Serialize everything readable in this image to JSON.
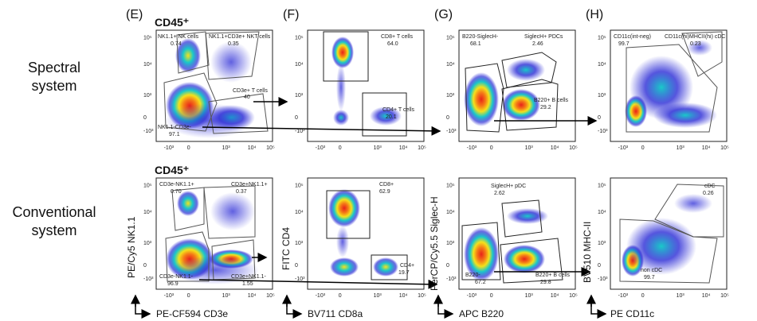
{
  "row_labels": {
    "spectral": [
      "Spectral",
      "system"
    ],
    "conventional": [
      "Conventional",
      "system"
    ]
  },
  "cd45_label": "CD45⁺",
  "panels": [
    {
      "letter": "(E)"
    },
    {
      "letter": "(F)"
    },
    {
      "letter": "(G)"
    },
    {
      "letter": "(H)"
    }
  ],
  "axes": {
    "x": [
      "PE-CF594 CD3e",
      "BV711 CD8a",
      "APC B220",
      "PE CD11c"
    ],
    "y": [
      "PE/Cy5 NK1.1",
      "FITC CD4",
      "PerCP/Cy5.5 Siglec-H",
      "BV510 MHC-II"
    ]
  },
  "gates": {
    "spectral": {
      "E": [
        {
          "name": "NK1.1+ NK cells",
          "value": "0.74"
        },
        {
          "name": "NK1.1+CD3e+ NKT cells",
          "value": "0.35"
        },
        {
          "name": "CD3e+ T cells",
          "value": "40"
        },
        {
          "name": "NK1.1-CD3e-",
          "value": "97.1"
        }
      ],
      "F": [
        {
          "name": "CD8+ T cells",
          "value": "64.0"
        },
        {
          "name": "CD4+ T cells",
          "value": "20.1"
        }
      ],
      "G": [
        {
          "name": "B220-SiglecH-",
          "value": "68.1"
        },
        {
          "name": "SiglecH+ PDCs",
          "value": "2.46"
        },
        {
          "name": "B220+ B cells",
          "value": "29.2"
        }
      ],
      "H": [
        {
          "name": "CD11c(int-neg)",
          "value": "99.7"
        },
        {
          "name": "CD11c(hi)MHCII(hi) cDC",
          "value": "0.23"
        }
      ]
    },
    "conventional": {
      "E": [
        {
          "name": "CD3e-NK1.1+",
          "value": "0.70"
        },
        {
          "name": "CD3e+NK1.1+",
          "value": "0.37"
        },
        {
          "name": "CD3e-NK1.1-",
          "value": "96.9"
        },
        {
          "name": "CD3e+NK1.1-",
          "value": "1.55"
        }
      ],
      "F": [
        {
          "name": "CD8+",
          "value": "62.9"
        },
        {
          "name": "CD4+",
          "value": "19.7"
        }
      ],
      "G": [
        {
          "name": "SiglecH+ pDC",
          "value": "2.62"
        },
        {
          "name": "B220-",
          "value": "67.2"
        },
        {
          "name": "B220+ B cells",
          "value": "29.8"
        }
      ],
      "H": [
        {
          "name": "cDC",
          "value": "0.26"
        },
        {
          "name": "non cDC",
          "value": "99.7"
        }
      ]
    }
  },
  "ticks": {
    "x": [
      "-10³",
      "0",
      "10³",
      "10⁴",
      "10⁵"
    ],
    "y": [
      "10⁵",
      "10⁴",
      "10³",
      "0",
      "-10³"
    ]
  },
  "colors": {
    "low": "#2b2bd6",
    "mid": "#19c9c9",
    "high": "#f5e11a",
    "peak": "#e8221a"
  }
}
